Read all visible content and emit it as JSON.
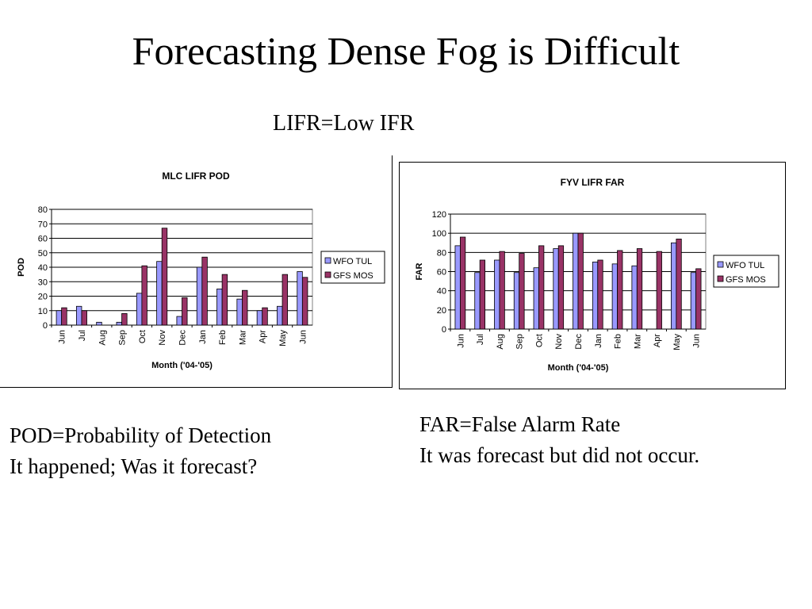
{
  "slide": {
    "title": "Forecasting Dense Fog is Difficult",
    "subtitle": "LIFR=Low IFR"
  },
  "captions": {
    "pod": {
      "line1": "POD=Probability of Detection",
      "line2": "It happened; Was it forecast?"
    },
    "far": {
      "line1": "FAR=False Alarm Rate",
      "line2": "It was forecast but did not occur."
    }
  },
  "colors": {
    "wfo": "#9999ff",
    "gfs": "#993366",
    "gridline": "#000000"
  },
  "chart_data": [
    {
      "type": "bar",
      "title": "MLC LIFR POD",
      "xlabel": "Month ('04-'05)",
      "ylabel": "POD",
      "categories": [
        "Jun",
        "Jul",
        "Aug",
        "Sep",
        "Oct",
        "Nov",
        "Dec",
        "Jan",
        "Feb",
        "Mar",
        "Apr",
        "May",
        "Jun"
      ],
      "ylim": [
        0,
        80
      ],
      "yticks": [
        0,
        10,
        20,
        30,
        40,
        50,
        60,
        70,
        80
      ],
      "grid": true,
      "legend": "right",
      "series": [
        {
          "name": "WFO TUL",
          "values": [
            10,
            13,
            2,
            2,
            22,
            44,
            6,
            40,
            25,
            18,
            10,
            13,
            37
          ]
        },
        {
          "name": "GFS MOS",
          "values": [
            12,
            10,
            0,
            8,
            41,
            67,
            19,
            47,
            35,
            24,
            12,
            35,
            33
          ]
        }
      ]
    },
    {
      "type": "bar",
      "title": "FYV LIFR FAR",
      "xlabel": "Month ('04-'05)",
      "ylabel": "FAR",
      "categories": [
        "Jun",
        "Jul",
        "Aug",
        "Sep",
        "Oct",
        "Nov",
        "Dec",
        "Jan",
        "Feb",
        "Mar",
        "Apr",
        "May",
        "Jun"
      ],
      "ylim": [
        0,
        120
      ],
      "yticks": [
        0,
        20,
        40,
        60,
        80,
        100,
        120
      ],
      "grid": true,
      "legend": "right",
      "series": [
        {
          "name": "WFO TUL",
          "values": [
            87,
            59,
            72,
            59,
            64,
            84,
            100,
            70,
            68,
            66,
            0,
            90,
            59
          ]
        },
        {
          "name": "GFS MOS",
          "values": [
            96,
            72,
            81,
            79,
            87,
            87,
            100,
            72,
            82,
            84,
            81,
            94,
            63
          ]
        }
      ]
    }
  ]
}
